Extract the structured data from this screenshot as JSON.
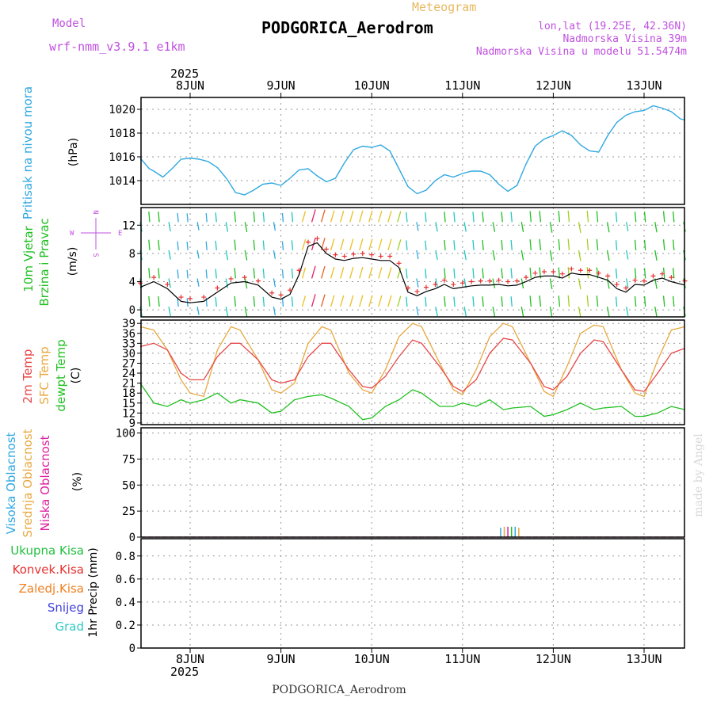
{
  "header": {
    "model_label": "Model",
    "model_name": "wrf-nmm_v3.9.1 e1km",
    "title": "PODGORICA_Aerodrom",
    "subtitle": "Meteogram",
    "lonlat": "lon,lat (19.25E, 42.36N)",
    "elevation": "Nadmorska Visina 39m",
    "model_elevation": "Nadmorska Visina u modelu 51.5474m",
    "footer": "PODGORICA_Aerodrom",
    "watermark": "made by Angel",
    "colors": {
      "model": "#c050e0",
      "title": "#000000",
      "subtitle": "#e8b860",
      "info": "#c050e0"
    }
  },
  "time_axis": {
    "year": "2025",
    "days": [
      "8JUN",
      "9JUN",
      "10JUN",
      "11JUN",
      "12JUN",
      "13JUN"
    ]
  },
  "panels": {
    "pressure": {
      "ylabel": "Pritisak na nivou mora",
      "unit": "(hPa)",
      "ticks": [
        "1014",
        "1016",
        "1018",
        "1020"
      ],
      "color": "#30a8e0"
    },
    "wind": {
      "ylabel1": "10m Vjetar",
      "ylabel2": "Brzina i Pravac",
      "unit": "(m/s)",
      "ticks": [
        "0",
        "4",
        "8",
        "12"
      ],
      "compass": {
        "n": "N",
        "s": "S",
        "e": "E",
        "w": "W"
      },
      "speed_color": "#000000",
      "gust_color": "#e83030"
    },
    "temperature": {
      "ylabel1": "2m Temp",
      "ylabel2": "SFC Temp",
      "ylabel3": "dewpt Temp",
      "unit": "(C)",
      "ticks": [
        "9",
        "12",
        "15",
        "18",
        "21",
        "24",
        "27",
        "30",
        "33",
        "36",
        "39"
      ],
      "colors": {
        "t2m": "#e84848",
        "sfc": "#e8a840",
        "dewpt": "#20c020"
      }
    },
    "clouds": {
      "ylabel1": "Visoka Oblacnost",
      "ylabel2": "Srednja Oblacnost",
      "ylabel3": "Niska Oblacnost",
      "unit": "(%)",
      "ticks": [
        "0",
        "25",
        "50",
        "75",
        "100"
      ],
      "colors": {
        "high": "#30a8e0",
        "mid": "#e8a840",
        "low": "#e020a0"
      }
    },
    "precip": {
      "legend": [
        "Ukupna Kisa",
        "Konvek.Kisa",
        "Zaledj.Kisa",
        "Snijeg",
        "Grad"
      ],
      "legend_colors": [
        "#20c040",
        "#e83030",
        "#f08020",
        "#4040e0",
        "#30c8c8"
      ],
      "ylabel": "1hr Precip (mm)",
      "ticks": [
        "0",
        "0.2",
        "0.4",
        "0.6",
        "0.8"
      ]
    }
  },
  "chart_data": [
    {
      "type": "line",
      "ylabel": "Pritisak na nivou mora (hPa)",
      "ylim": [
        1012,
        1021
      ],
      "x": [
        -0.55,
        -0.45,
        -0.4,
        -0.3,
        -0.2,
        -0.1,
        0.0,
        0.1,
        0.2,
        0.3,
        0.4,
        0.5,
        0.6,
        0.7,
        0.8,
        0.9,
        1.0,
        1.1,
        1.2,
        1.3,
        1.4,
        1.5,
        1.6,
        1.7,
        1.8,
        1.9,
        2.0,
        2.1,
        2.2,
        2.3,
        2.4,
        2.5,
        2.6,
        2.7,
        2.8,
        2.9,
        3.0,
        3.1,
        3.2,
        3.3,
        3.4,
        3.5,
        3.6,
        3.7,
        3.8,
        3.9,
        4.0,
        4.1,
        4.2,
        4.3,
        4.4,
        4.5,
        4.6,
        4.7,
        4.8,
        4.9,
        5.0,
        5.1,
        5.2,
        5.3,
        5.4,
        5.45
      ],
      "series": [
        {
          "values": [
            1015.9,
            1015.0,
            1014.8,
            1014.3,
            1015.0,
            1015.8,
            1015.9,
            1015.8,
            1015.6,
            1015.1,
            1014.2,
            1013.0,
            1012.8,
            1013.2,
            1013.7,
            1013.8,
            1013.6,
            1014.2,
            1014.9,
            1015.0,
            1014.4,
            1013.9,
            1014.2,
            1015.5,
            1016.6,
            1016.9,
            1016.8,
            1017.0,
            1016.5,
            1015.0,
            1013.5,
            1012.9,
            1013.2,
            1014.0,
            1014.5,
            1014.3,
            1014.6,
            1014.8,
            1014.8,
            1014.5,
            1013.7,
            1013.1,
            1013.6,
            1015.4,
            1016.9,
            1017.5,
            1017.8,
            1018.2,
            1017.8,
            1017.0,
            1016.5,
            1016.4,
            1017.8,
            1018.9,
            1019.5,
            1019.8,
            1019.9,
            1020.3,
            1020.1,
            1019.8,
            1019.2,
            1019.1
          ]
        }
      ]
    },
    {
      "type": "line",
      "ylabel": "10m Vjetar Brzina i Pravac (m/s)",
      "ylim": [
        -1,
        14.5
      ],
      "x": [
        -0.55,
        -0.4,
        -0.25,
        -0.1,
        0.0,
        0.15,
        0.3,
        0.45,
        0.6,
        0.75,
        0.9,
        1.0,
        1.1,
        1.2,
        1.3,
        1.4,
        1.5,
        1.6,
        1.7,
        1.8,
        1.9,
        2.0,
        2.1,
        2.2,
        2.3,
        2.4,
        2.5,
        2.6,
        2.7,
        2.8,
        2.9,
        3.0,
        3.1,
        3.2,
        3.3,
        3.4,
        3.5,
        3.6,
        3.7,
        3.8,
        3.9,
        4.0,
        4.1,
        4.2,
        4.3,
        4.4,
        4.5,
        4.6,
        4.7,
        4.8,
        4.9,
        5.0,
        5.1,
        5.2,
        5.3,
        5.45
      ],
      "series": [
        {
          "values": [
            3.2,
            4.0,
            3.0,
            1.2,
            1.0,
            1.2,
            2.5,
            3.8,
            4.0,
            3.5,
            1.8,
            1.5,
            2.2,
            5.0,
            9.0,
            9.5,
            8.0,
            7.2,
            7.0,
            7.3,
            7.4,
            7.2,
            7.0,
            7.0,
            6.0,
            2.5,
            2.0,
            2.6,
            3.0,
            3.6,
            3.0,
            3.2,
            3.4,
            3.5,
            3.5,
            3.6,
            3.4,
            3.5,
            4.0,
            4.6,
            4.8,
            4.8,
            4.5,
            5.2,
            5.0,
            5.0,
            4.6,
            4.2,
            3.0,
            2.5,
            3.6,
            3.5,
            4.2,
            4.5,
            4.0,
            3.5
          ]
        }
      ]
    },
    {
      "type": "line",
      "ylabel": "2m Temp / SFC Temp / dewpt Temp (C)",
      "ylim": [
        8.5,
        40
      ],
      "x": [
        -0.55,
        -0.4,
        -0.25,
        -0.1,
        0.0,
        0.15,
        0.3,
        0.45,
        0.55,
        0.75,
        0.9,
        1.0,
        1.15,
        1.3,
        1.45,
        1.55,
        1.75,
        1.9,
        2.0,
        2.15,
        2.3,
        2.45,
        2.55,
        2.75,
        2.9,
        3.0,
        3.15,
        3.3,
        3.45,
        3.55,
        3.75,
        3.9,
        4.0,
        4.15,
        4.3,
        4.45,
        4.55,
        4.75,
        4.9,
        5.0,
        5.15,
        5.3,
        5.45
      ],
      "series": [
        {
          "name": "2m Temp",
          "values": [
            32.0,
            33.0,
            31.0,
            24.0,
            22.0,
            22.0,
            29.0,
            33.0,
            33.0,
            28.0,
            22.0,
            21.0,
            22.0,
            29.0,
            33.0,
            33.0,
            25.0,
            20.0,
            19.5,
            23.0,
            29.0,
            34.0,
            33.0,
            26.0,
            20.0,
            18.5,
            22.0,
            30.0,
            34.5,
            34.0,
            27.0,
            20.0,
            19.0,
            23.0,
            30.0,
            34.0,
            33.5,
            25.0,
            19.0,
            18.5,
            24.0,
            30.0,
            31.5
          ]
        },
        {
          "name": "SFC Temp",
          "values": [
            38.0,
            37.0,
            31.0,
            22.0,
            18.0,
            17.0,
            31.0,
            38.0,
            37.0,
            28.0,
            19.0,
            18.0,
            21.0,
            33.0,
            38.0,
            37.0,
            24.0,
            19.0,
            18.0,
            25.0,
            35.0,
            39.0,
            38.0,
            27.0,
            19.0,
            17.5,
            25.0,
            35.0,
            39.0,
            38.0,
            27.0,
            18.5,
            17.0,
            26.0,
            36.0,
            38.5,
            38.0,
            25.0,
            18.0,
            17.0,
            28.0,
            37.0,
            38.0
          ]
        },
        {
          "name": "dewpt Temp",
          "values": [
            21.0,
            15.0,
            14.0,
            16.0,
            15.0,
            16.0,
            18.0,
            15.0,
            16.0,
            15.0,
            12.0,
            12.5,
            16.0,
            17.0,
            17.5,
            16.5,
            14.0,
            10.0,
            10.5,
            14.0,
            16.0,
            19.0,
            18.0,
            14.0,
            14.0,
            15.0,
            14.0,
            16.0,
            13.0,
            13.5,
            14.0,
            11.0,
            11.5,
            13.0,
            15.0,
            13.0,
            13.5,
            14.0,
            11.0,
            11.0,
            12.0,
            14.0,
            13.0
          ]
        }
      ]
    },
    {
      "type": "bar",
      "ylabel": "Visoka / Srednja / Niska Oblacnost (%)",
      "ylim": [
        0,
        105
      ],
      "x": [
        3.42,
        3.46,
        3.5,
        3.54,
        3.58,
        3.62
      ],
      "series": [
        {
          "name": "Visoka Oblacnost",
          "values": [
            0,
            0,
            0,
            0,
            0,
            0
          ]
        },
        {
          "name": "Srednja Oblacnost",
          "values": [
            9,
            10,
            10,
            10,
            10,
            9
          ]
        },
        {
          "name": "Niska Oblacnost",
          "values": [
            0,
            0,
            0,
            0,
            0,
            0
          ]
        }
      ]
    },
    {
      "type": "bar",
      "ylabel": "1hr Precip (mm)",
      "ylim": [
        0,
        0.95
      ],
      "series": [
        {
          "name": "Ukupna Kisa",
          "values": []
        },
        {
          "name": "Konvek.Kisa",
          "values": []
        },
        {
          "name": "Zaledj.Kisa",
          "values": []
        },
        {
          "name": "Snijeg",
          "values": []
        },
        {
          "name": "Grad",
          "values": []
        }
      ]
    }
  ]
}
